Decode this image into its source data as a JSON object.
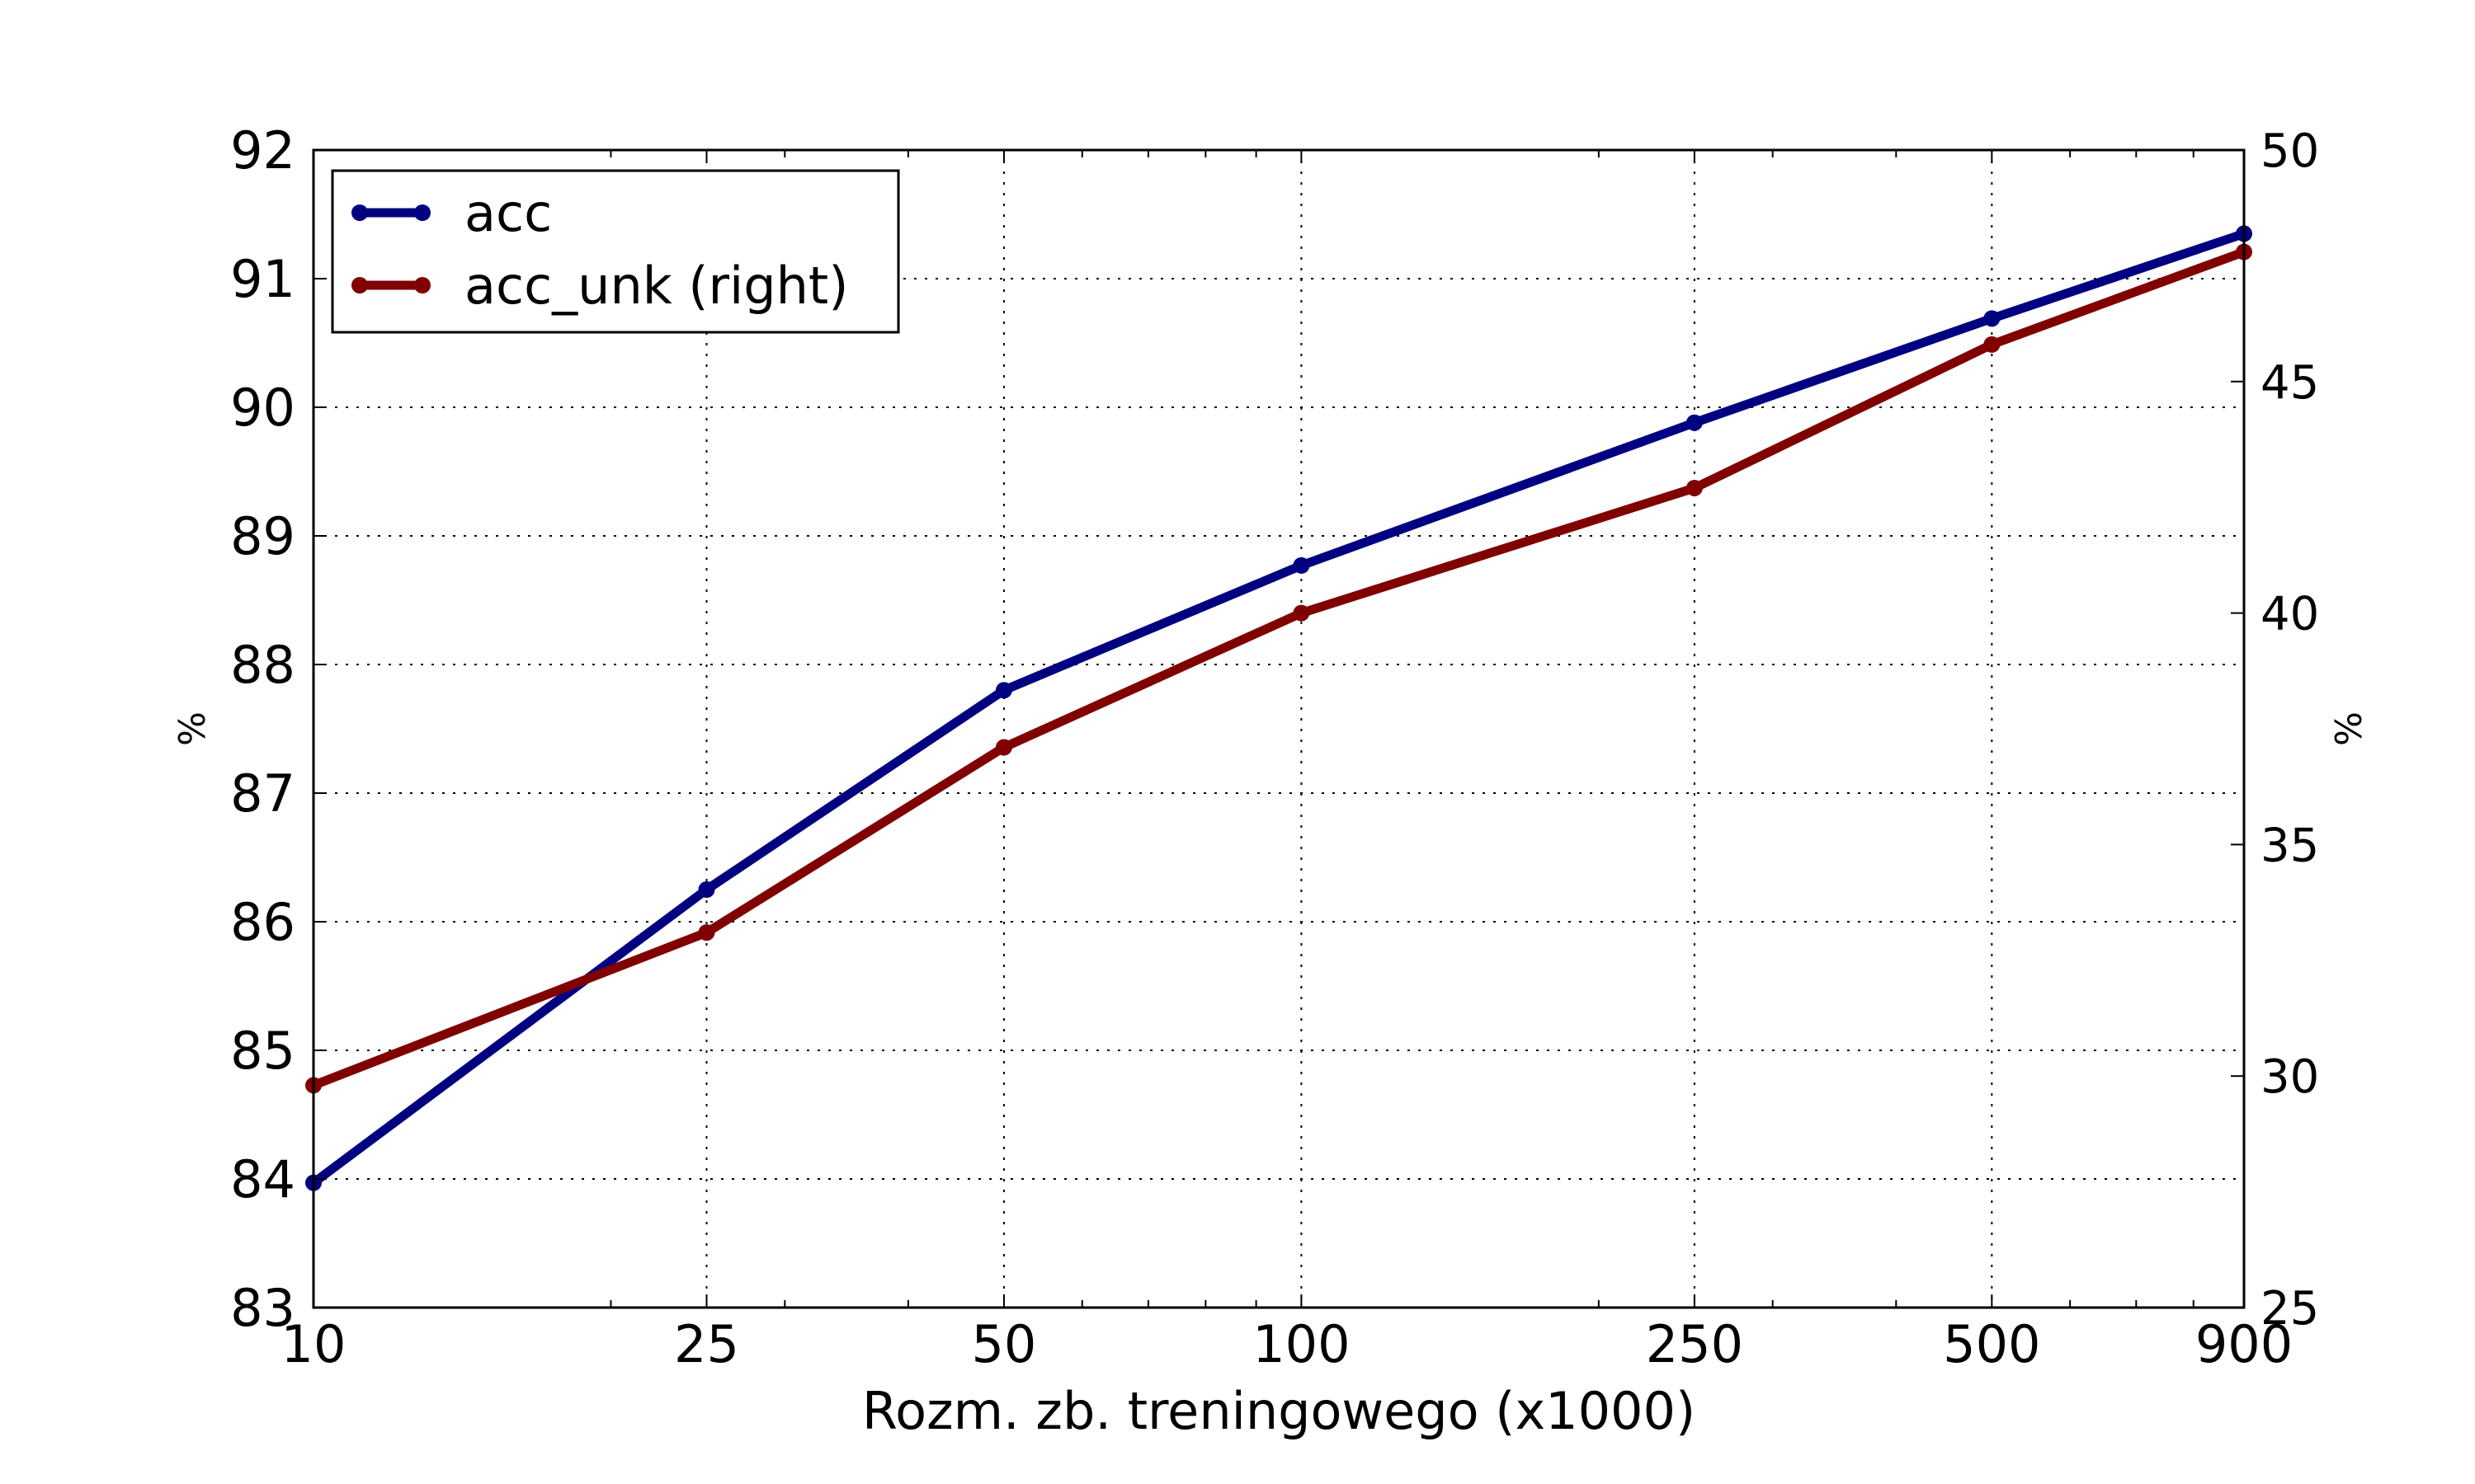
{
  "chart_data": {
    "type": "line",
    "title": "",
    "xlabel": "Rozm. zb. treningowego (x1000)",
    "ylabel": "%",
    "y2label": "%",
    "xscale": "log",
    "xlim": [
      10,
      900
    ],
    "ylim": [
      83,
      92
    ],
    "y2lim": [
      25,
      50
    ],
    "grid": true,
    "legend_position": "top-left",
    "x": [
      10,
      25,
      50,
      100,
      250,
      500,
      900
    ],
    "x_tick_labels": [
      "10",
      "25",
      "50",
      "100",
      "250",
      "500",
      "900"
    ],
    "y_ticks": [
      83,
      84,
      85,
      86,
      87,
      88,
      89,
      90,
      91,
      92
    ],
    "y2_ticks": [
      25,
      30,
      35,
      40,
      45,
      50
    ],
    "series": [
      {
        "name": "acc",
        "axis": "left",
        "color": "#000080",
        "values": [
          83.97,
          86.25,
          87.8,
          88.77,
          89.88,
          90.69,
          91.35
        ]
      },
      {
        "name": "acc_unk (right)",
        "axis": "right",
        "color": "#800000",
        "values": [
          29.8,
          33.1,
          37.1,
          40.0,
          42.7,
          45.8,
          47.8
        ]
      }
    ]
  }
}
